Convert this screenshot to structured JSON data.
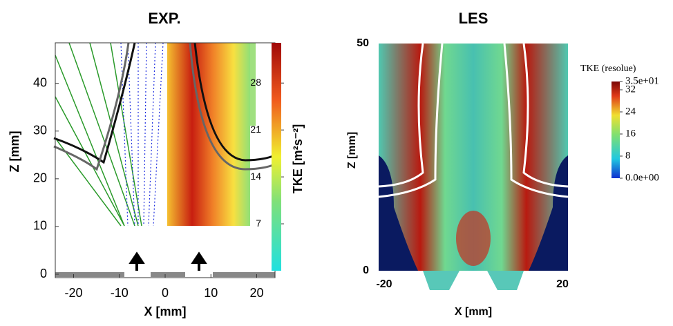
{
  "chart_data": [
    {
      "type": "contour",
      "title": "EXP.",
      "xlabel": "X [mm]",
      "ylabel": "Z [mm]",
      "xlim": [
        -24,
        24
      ],
      "xticks": [
        -20,
        -10,
        0,
        10,
        20
      ],
      "ylim": [
        0,
        48.5
      ],
      "yticks": [
        0,
        10,
        20,
        30,
        40
      ],
      "colorbar_label": "TKE [m²s⁻²]",
      "clim": [
        0,
        34
      ],
      "cticks": [
        7,
        14,
        21,
        28
      ]
    },
    {
      "type": "contour",
      "title": "LES",
      "xlabel": "X [mm]",
      "ylabel": "Z [mm]",
      "xlim": [
        -20,
        20
      ],
      "xticks": [
        -20,
        20
      ],
      "ylim": [
        0,
        50
      ],
      "yticks": [
        0,
        50
      ],
      "colorbar_label": "TKE (resolue)",
      "clim": [
        0,
        35
      ],
      "cticks": [
        {
          "value": 35,
          "label": "3.5e+01"
        },
        32,
        24,
        16,
        8,
        {
          "value": 0,
          "label": "0.0e+00"
        }
      ]
    }
  ]
}
